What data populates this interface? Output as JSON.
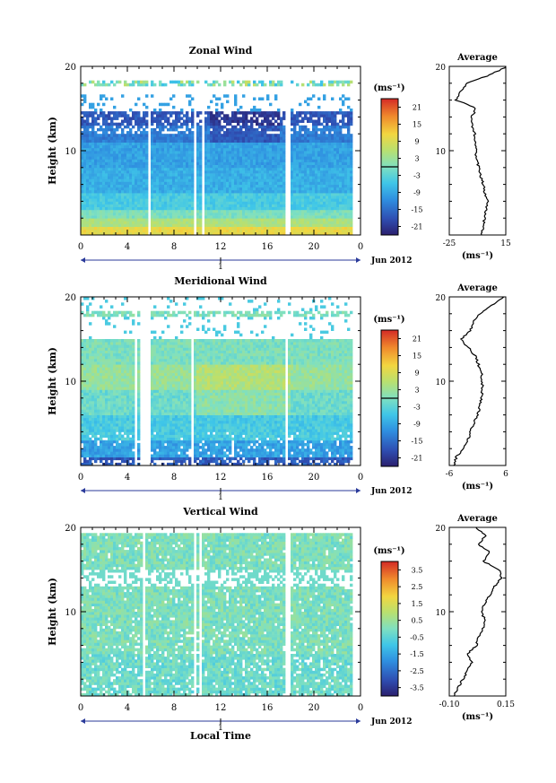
{
  "chart_data": [
    {
      "type": "heatmap",
      "title": "Zonal Wind",
      "ylabel": "Height (km)",
      "yticks": [
        10,
        20
      ],
      "ylim": [
        0,
        20
      ],
      "xlim": [
        0,
        24
      ],
      "xticks": [
        "0",
        "4",
        "8",
        "12",
        "16",
        "20",
        "0"
      ],
      "day_label": "1",
      "month_label": "Jun 2012",
      "colorbar": {
        "unit": "(ms⁻¹)",
        "ticks": [
          "21",
          "15",
          "9",
          "3",
          "-3",
          "-9",
          "-15",
          "-21"
        ],
        "range": [
          -24,
          24
        ]
      },
      "gaps_hours": [
        [
          5.7,
          6.0
        ],
        [
          9.8,
          10.0
        ],
        [
          10.3,
          10.6
        ],
        [
          17.6,
          17.9
        ]
      ],
      "profile": {
        "title": "Average",
        "xlabel": "(ms⁻¹)",
        "xticks": [
          "-25",
          "15"
        ],
        "xlim": [
          -25,
          15
        ],
        "heights": [
          0,
          1,
          2,
          3,
          4,
          5,
          6,
          7,
          8,
          9,
          10,
          11,
          12,
          13,
          14,
          15,
          16,
          17,
          18,
          19,
          20
        ],
        "values": [
          -2,
          -1,
          0,
          1,
          2,
          0,
          -1,
          -3,
          -4,
          -6,
          -6,
          -7,
          -7,
          -9,
          -9,
          -6,
          -20,
          -17,
          -12,
          4,
          16
        ]
      }
    },
    {
      "type": "heatmap",
      "title": "Meridional Wind",
      "ylabel": "Height (km)",
      "yticks": [
        10,
        20
      ],
      "ylim": [
        0,
        20
      ],
      "xlim": [
        0,
        24
      ],
      "xticks": [
        "0",
        "4",
        "8",
        "12",
        "16",
        "20",
        "0"
      ],
      "day_label": "1",
      "month_label": "Jun 2012",
      "colorbar": {
        "unit": "(ms⁻¹)",
        "ticks": [
          "21",
          "15",
          "9",
          "3",
          "-3",
          "-9",
          "-15",
          "-21"
        ],
        "range": [
          -24,
          24
        ]
      },
      "gaps_hours": [
        [
          4.6,
          4.9
        ],
        [
          5.0,
          5.9
        ],
        [
          9.5,
          9.8
        ],
        [
          17.5,
          17.8
        ]
      ],
      "profile": {
        "title": "Average",
        "xlabel": "(ms⁻¹)",
        "xticks": [
          "-6",
          "6"
        ],
        "xlim": [
          -6,
          6
        ],
        "heights": [
          0,
          1,
          2,
          3,
          4,
          5,
          6,
          7,
          8,
          9,
          10,
          11,
          12,
          13,
          14,
          15,
          16,
          17,
          18,
          19,
          20
        ],
        "values": [
          -5,
          -4.5,
          -3,
          -2,
          -1.5,
          -0.8,
          0,
          0.5,
          0.8,
          1,
          1,
          0.8,
          0.2,
          -0.5,
          -2,
          -3.5,
          -1.5,
          -1,
          0.5,
          3,
          5.5
        ]
      }
    },
    {
      "type": "heatmap",
      "title": "Vertical Wind",
      "ylabel": "Height (km)",
      "xlabel": "Local Time",
      "yticks": [
        10,
        20
      ],
      "ylim": [
        0,
        20
      ],
      "xlim": [
        0,
        24
      ],
      "xticks": [
        "0",
        "4",
        "8",
        "12",
        "16",
        "20",
        "0"
      ],
      "day_label": "1",
      "month_label": "Jun 2012",
      "colorbar": {
        "unit": "(ms⁻¹)",
        "ticks": [
          "3.5",
          "2.5",
          "1.5",
          "0.5",
          "-0.5",
          "-1.5",
          "-2.5",
          "-3.5"
        ],
        "range": [
          -4,
          4
        ]
      },
      "gaps_hours": [
        [
          5.2,
          5.6
        ],
        [
          9.8,
          10.0
        ],
        [
          10.2,
          10.4
        ],
        [
          17.6,
          18.0
        ]
      ],
      "profile": {
        "title": "Average",
        "xlabel": "(ms⁻¹)",
        "xticks": [
          "-0.10",
          "0.15"
        ],
        "xlim": [
          -0.1,
          0.15
        ],
        "heights": [
          0,
          1,
          2,
          3,
          4,
          5,
          6,
          7,
          8,
          9,
          10,
          11,
          12,
          13,
          14,
          15,
          16,
          17,
          18,
          19,
          20
        ],
        "values": [
          -0.08,
          -0.06,
          -0.04,
          -0.02,
          0.0,
          -0.02,
          0.02,
          0.03,
          0.05,
          0.06,
          0.04,
          0.06,
          0.08,
          0.1,
          0.13,
          0.12,
          0.05,
          0.08,
          0.03,
          0.06,
          0.02
        ]
      }
    }
  ]
}
